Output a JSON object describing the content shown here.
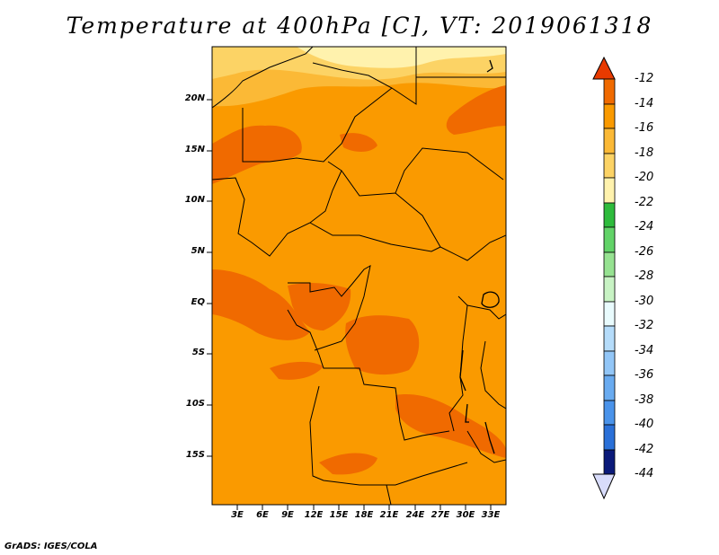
{
  "title": "Temperature at 400hPa [C], VT: 2019061318",
  "credit": "GrADS: IGES/COLA",
  "map": {
    "lat_ticks": [
      "20N",
      "15N",
      "10N",
      "5N",
      "EQ",
      "5S",
      "10S",
      "15S"
    ],
    "lon_ticks": [
      "3E",
      "6E",
      "9E",
      "12E",
      "15E",
      "18E",
      "21E",
      "24E",
      "27E",
      "30E",
      "33E"
    ],
    "field_colors": {
      "-12_-14": "#f06a00",
      "-14_-16": "#fa9a00",
      "-16_-18": "#fbb936",
      "-18_-20": "#fcd365",
      "-20_-22": "#fff2ad"
    }
  },
  "colorbar": {
    "levels": [
      "-12",
      "-14",
      "-16",
      "-18",
      "-20",
      "-22",
      "-24",
      "-26",
      "-28",
      "-30",
      "-32",
      "-34",
      "-36",
      "-38",
      "-40",
      "-42",
      "-44"
    ],
    "colors": [
      "#f06a00",
      "#fa9a00",
      "#fbb936",
      "#fcd365",
      "#fff2ad",
      "#2ebb3c",
      "#62d368",
      "#96e291",
      "#c8f3c4",
      "#e9fbfd",
      "#b5dcfa",
      "#92c6f7",
      "#69abf0",
      "#4a93ea",
      "#2a70d8",
      "#1a52c0",
      "#0b1a7a"
    ],
    "top_arrow_color": "#e83a00",
    "bottom_arrow_color": "#d8dcfb"
  }
}
